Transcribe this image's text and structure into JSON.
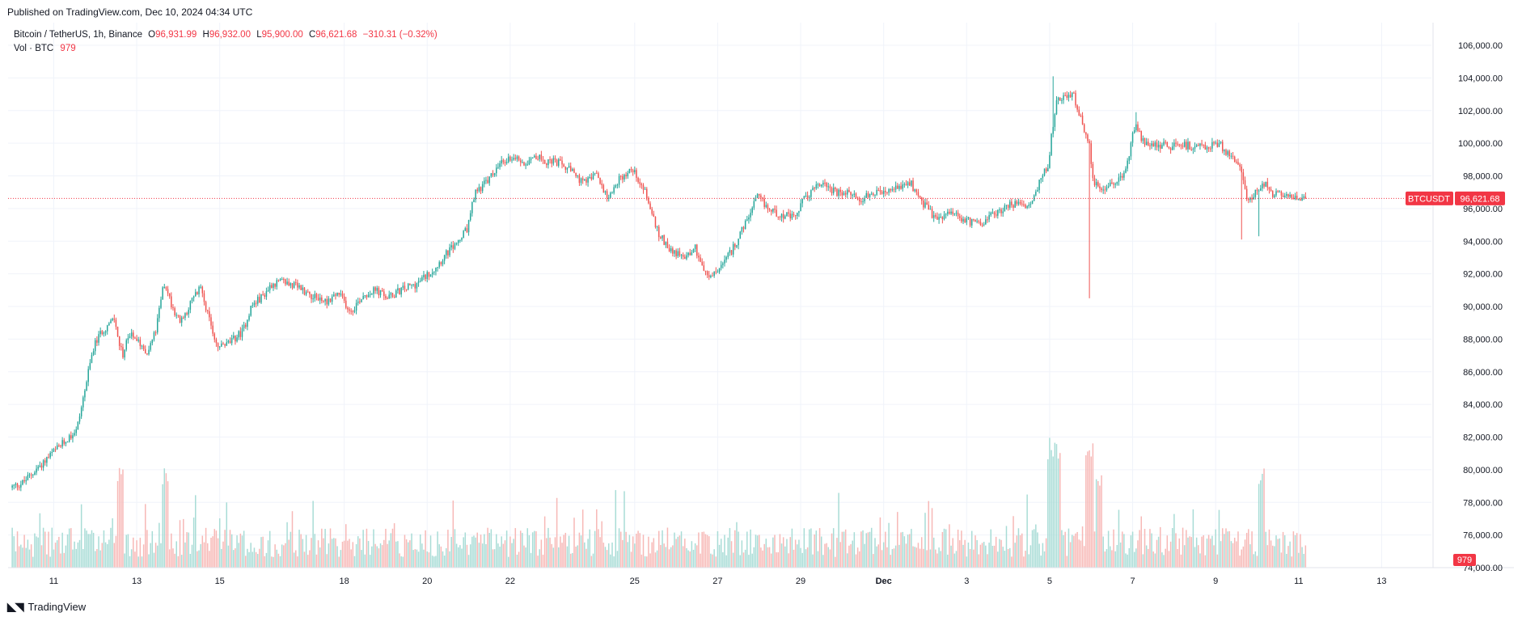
{
  "header": {
    "published": "Published on TradingView.com, Dec 10, 2024 04:34 UTC"
  },
  "legend": {
    "symbol": "Bitcoin / TetherUS, 1h, Binance",
    "o_label": "O",
    "o": "96,931.99",
    "h_label": "H",
    "h": "96,932.00",
    "l_label": "L",
    "l": "95,900.00",
    "c_label": "C",
    "c": "96,621.68",
    "change": "−310.31 (−0.32%)",
    "vol_label": "Vol · BTC",
    "vol": "979"
  },
  "footer": {
    "brand": "TradingView"
  },
  "colors": {
    "up": "#26a69a",
    "down": "#ef5350",
    "up_vol": "#a8dcd6",
    "down_vol": "#f7b8b6",
    "price_tag": "#f23645",
    "grid": "#f0f3fa"
  },
  "chart_data": {
    "type": "candlestick",
    "symbol_tag": "BTCUSDT",
    "last_price": 96621.68,
    "last_price_label": "96,621.68",
    "last_volume_label": "979",
    "ylim": [
      74000,
      107000
    ],
    "y_ticks": [
      106000,
      104000,
      102000,
      100000,
      98000,
      96000,
      94000,
      92000,
      90000,
      88000,
      86000,
      84000,
      82000,
      80000,
      78000,
      76000,
      74000
    ],
    "y_tick_labels": [
      "106,000.00",
      "104,000.00",
      "102,000.00",
      "100,000.00",
      "98,000.00",
      "96,000.00",
      "94,000.00",
      "92,000.00",
      "90,000.00",
      "88,000.00",
      "86,000.00",
      "84,000.00",
      "82,000.00",
      "80,000.00",
      "78,000.00",
      "76,000.00",
      "74,000.00"
    ],
    "x_range_days": [
      9.9,
      44.2
    ],
    "x_ticks": [
      {
        "day": 11,
        "label": "11"
      },
      {
        "day": 13,
        "label": "13"
      },
      {
        "day": 15,
        "label": "15"
      },
      {
        "day": 18,
        "label": "18"
      },
      {
        "day": 20,
        "label": "20"
      },
      {
        "day": 22,
        "label": "22"
      },
      {
        "day": 25,
        "label": "25"
      },
      {
        "day": 27,
        "label": "27"
      },
      {
        "day": 29,
        "label": "29"
      },
      {
        "day": 31,
        "label": "Dec"
      },
      {
        "day": 33,
        "label": "3"
      },
      {
        "day": 35,
        "label": "5"
      },
      {
        "day": 37,
        "label": "7"
      },
      {
        "day": 39,
        "label": "9"
      },
      {
        "day": 41,
        "label": "11"
      },
      {
        "day": 43,
        "label": "13"
      }
    ],
    "start_day": 10.0,
    "end_day": 41.18,
    "price_path": [
      [
        10.0,
        78900
      ],
      [
        10.3,
        79200
      ],
      [
        10.8,
        80500
      ],
      [
        11.3,
        81700
      ],
      [
        11.6,
        82500
      ],
      [
        11.8,
        85000
      ],
      [
        12.0,
        87500
      ],
      [
        12.2,
        88500
      ],
      [
        12.5,
        89200
      ],
      [
        12.7,
        87000
      ],
      [
        12.9,
        88500
      ],
      [
        13.1,
        87800
      ],
      [
        13.3,
        87200
      ],
      [
        13.5,
        88500
      ],
      [
        13.7,
        91500
      ],
      [
        13.9,
        90000
      ],
      [
        14.1,
        89000
      ],
      [
        14.4,
        90500
      ],
      [
        14.6,
        91200
      ],
      [
        14.8,
        89000
      ],
      [
        15.0,
        87500
      ],
      [
        15.3,
        87800
      ],
      [
        15.6,
        88500
      ],
      [
        15.8,
        90000
      ],
      [
        16.1,
        90700
      ],
      [
        16.3,
        91400
      ],
      [
        16.6,
        91500
      ],
      [
        17.0,
        91100
      ],
      [
        17.3,
        90600
      ],
      [
        17.6,
        90300
      ],
      [
        17.9,
        90800
      ],
      [
        18.2,
        89700
      ],
      [
        18.5,
        90700
      ],
      [
        18.8,
        91000
      ],
      [
        19.1,
        90500
      ],
      [
        19.4,
        91000
      ],
      [
        19.8,
        91400
      ],
      [
        20.2,
        92300
      ],
      [
        20.5,
        93200
      ],
      [
        20.8,
        94000
      ],
      [
        21.0,
        94700
      ],
      [
        21.2,
        97000
      ],
      [
        21.5,
        97700
      ],
      [
        21.8,
        98700
      ],
      [
        22.1,
        99200
      ],
      [
        22.4,
        98800
      ],
      [
        22.6,
        99300
      ],
      [
        22.9,
        98900
      ],
      [
        23.2,
        98800
      ],
      [
        23.5,
        98300
      ],
      [
        23.8,
        97500
      ],
      [
        24.1,
        98100
      ],
      [
        24.4,
        96700
      ],
      [
        24.7,
        97900
      ],
      [
        25.0,
        98400
      ],
      [
        25.3,
        97000
      ],
      [
        25.6,
        94500
      ],
      [
        25.9,
        93500
      ],
      [
        26.2,
        93000
      ],
      [
        26.5,
        93600
      ],
      [
        26.8,
        91700
      ],
      [
        27.1,
        92300
      ],
      [
        27.4,
        93500
      ],
      [
        27.7,
        95000
      ],
      [
        28.0,
        96700
      ],
      [
        28.3,
        95900
      ],
      [
        28.6,
        95600
      ],
      [
        28.9,
        95400
      ],
      [
        29.1,
        96500
      ],
      [
        29.4,
        97300
      ],
      [
        29.6,
        97600
      ],
      [
        29.9,
        96900
      ],
      [
        30.2,
        96900
      ],
      [
        30.5,
        96600
      ],
      [
        30.8,
        96900
      ],
      [
        31.1,
        96900
      ],
      [
        31.4,
        97300
      ],
      [
        31.7,
        97500
      ],
      [
        32.0,
        96300
      ],
      [
        32.3,
        95300
      ],
      [
        32.6,
        95700
      ],
      [
        32.9,
        95400
      ],
      [
        33.2,
        95100
      ],
      [
        33.5,
        95300
      ],
      [
        33.8,
        95800
      ],
      [
        34.1,
        96300
      ],
      [
        34.4,
        96100
      ],
      [
        34.6,
        96200
      ],
      [
        34.8,
        97600
      ],
      [
        35.0,
        98700
      ],
      [
        35.2,
        102600
      ],
      [
        35.4,
        102800
      ],
      [
        35.6,
        103100
      ],
      [
        35.8,
        101400
      ],
      [
        36.0,
        100000
      ],
      [
        36.1,
        97500
      ],
      [
        36.3,
        97300
      ],
      [
        36.6,
        97500
      ],
      [
        36.9,
        98500
      ],
      [
        37.1,
        101200
      ],
      [
        37.3,
        100100
      ],
      [
        37.6,
        99900
      ],
      [
        37.9,
        99800
      ],
      [
        38.2,
        99900
      ],
      [
        38.5,
        99800
      ],
      [
        38.8,
        99700
      ],
      [
        39.1,
        100000
      ],
      [
        39.3,
        99500
      ],
      [
        39.6,
        98800
      ],
      [
        39.8,
        96400
      ],
      [
        40.0,
        97000
      ],
      [
        40.2,
        97600
      ],
      [
        40.4,
        96900
      ],
      [
        40.6,
        96800
      ],
      [
        40.8,
        96700
      ]
    ],
    "spikes": [
      {
        "day": 35.08,
        "high": 104100
      },
      {
        "day": 35.95,
        "low": 90500
      },
      {
        "day": 39.62,
        "low": 94100
      },
      {
        "day": 40.05,
        "low": 94300
      },
      {
        "day": 37.08,
        "high": 101900
      }
    ],
    "volume_scale_max": 100
  }
}
